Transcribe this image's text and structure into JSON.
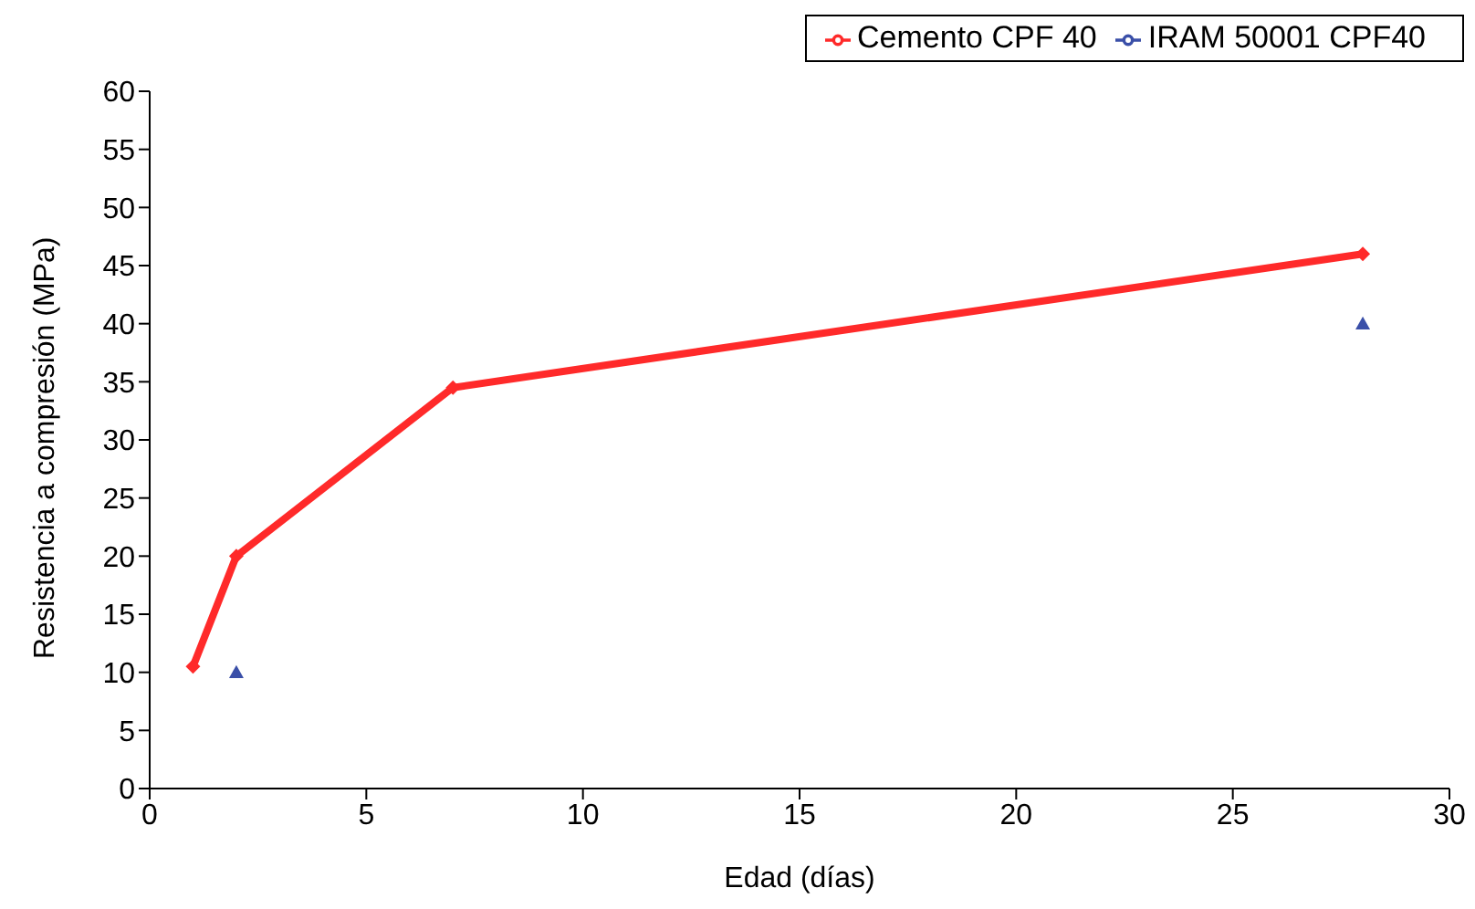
{
  "chart_data": {
    "type": "line",
    "xlabel": "Edad (días)",
    "ylabel": "Resistencia a compresión (MPa)",
    "series": [
      {
        "name": "Cemento CPF 40",
        "color": "#ff2a2a",
        "x": [
          1,
          2,
          7,
          28
        ],
        "values": [
          10.5,
          20,
          34.5,
          46
        ],
        "marker": "diamond"
      },
      {
        "name": "IRAM 50001 CPF40",
        "type": "scatter",
        "color": "#3a4fa8",
        "x": [
          2,
          28
        ],
        "values": [
          10,
          40
        ],
        "marker": "triangle"
      }
    ],
    "xlim": [
      0,
      30
    ],
    "xticks": [
      0,
      5,
      10,
      15,
      20,
      25,
      30
    ],
    "ylim": [
      0,
      60
    ],
    "yticks": [
      0,
      5,
      10,
      15,
      20,
      25,
      30,
      35,
      40,
      45,
      50,
      55,
      60
    ],
    "legend": "top right"
  }
}
